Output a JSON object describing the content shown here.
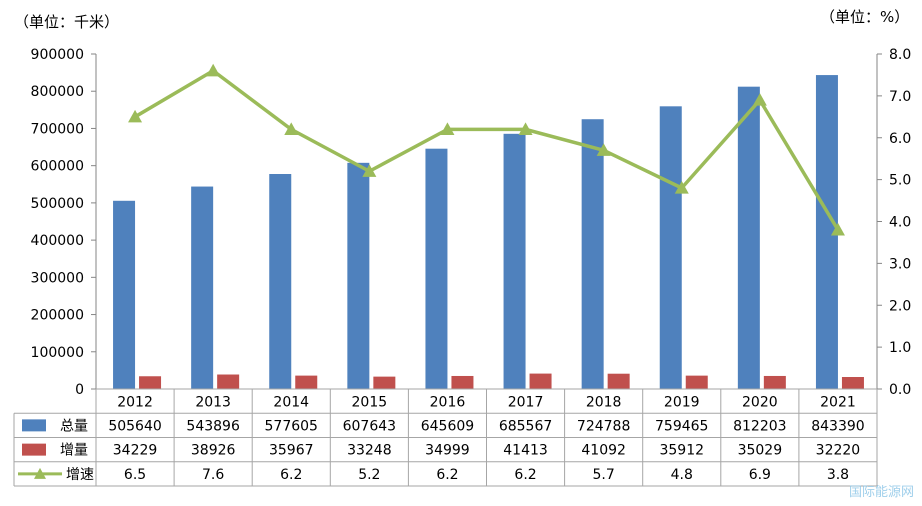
{
  "chart_data": {
    "type": "bar",
    "categories": [
      "2012",
      "2013",
      "2014",
      "2015",
      "2016",
      "2017",
      "2018",
      "2019",
      "2020",
      "2021"
    ],
    "series": [
      {
        "name": "总量",
        "type": "bar",
        "axis": "left",
        "color": "#4f81bd",
        "values": [
          505640,
          543896,
          577605,
          607643,
          645609,
          685567,
          724788,
          759465,
          812203,
          843390
        ]
      },
      {
        "name": "增量",
        "type": "bar",
        "axis": "left",
        "color": "#c0504d",
        "values": [
          34229,
          38926,
          35967,
          33248,
          34999,
          41413,
          41092,
          35912,
          35029,
          32220
        ]
      },
      {
        "name": "增速",
        "type": "line",
        "axis": "right",
        "color": "#9bbb59",
        "values": [
          6.5,
          7.6,
          6.2,
          5.2,
          6.2,
          6.2,
          5.7,
          4.8,
          6.9,
          3.8
        ],
        "labels": [
          "6.5",
          "7.6",
          "6.2",
          "5.2",
          "6.2",
          "6.2",
          "5.7",
          "4.8",
          "6.9",
          "3.8"
        ]
      }
    ],
    "left_unit": "（单位：千米）",
    "right_unit": "（单位：%）",
    "ylim_left": [
      0,
      900000
    ],
    "ylim_right": [
      0,
      8
    ],
    "left_ticks": [
      "0",
      "100000",
      "200000",
      "300000",
      "400000",
      "500000",
      "600000",
      "700000",
      "800000",
      "900000"
    ],
    "right_ticks": [
      "0.0",
      "1.0",
      "2.0",
      "3.0",
      "4.0",
      "5.0",
      "6.0",
      "7.0",
      "8.0"
    ],
    "grid": false,
    "legend": "data-table"
  },
  "watermark": "国际能源网"
}
